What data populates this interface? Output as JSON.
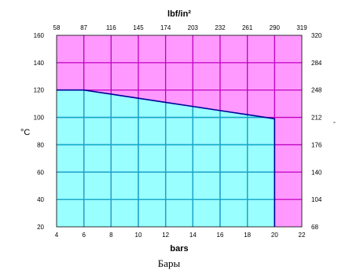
{
  "chart_data": {
    "type": "area",
    "title": "",
    "xlabel": "bars",
    "ylabel": "°C",
    "top_xlabel": "lbf/in²",
    "right_ylabel": "°",
    "caption": "Бары",
    "xlim": [
      4,
      22
    ],
    "ylim": [
      20,
      160
    ],
    "x_ticks": [
      4,
      6,
      8,
      10,
      12,
      14,
      16,
      18,
      20,
      22
    ],
    "y_ticks": [
      20,
      40,
      60,
      80,
      100,
      120,
      140,
      160
    ],
    "top_ticks": [
      "58",
      "87",
      "116",
      "145",
      "174",
      "203",
      "232",
      "261",
      "290",
      "319"
    ],
    "right_ticks": [
      "68",
      "104",
      "140",
      "176",
      "212",
      "248",
      "284",
      "320"
    ],
    "grid": true,
    "series": [
      {
        "x": [
          4,
          6,
          8,
          10,
          12,
          14,
          16,
          18,
          20,
          20
        ],
        "y": [
          120,
          120,
          117,
          114,
          111,
          108,
          105,
          102,
          99,
          20
        ]
      }
    ],
    "colors": {
      "below": "#99ffff",
      "above": "#ff99ff",
      "line": "#000099",
      "grid": "#c000c0",
      "grid_below": "#00b3c8"
    }
  }
}
